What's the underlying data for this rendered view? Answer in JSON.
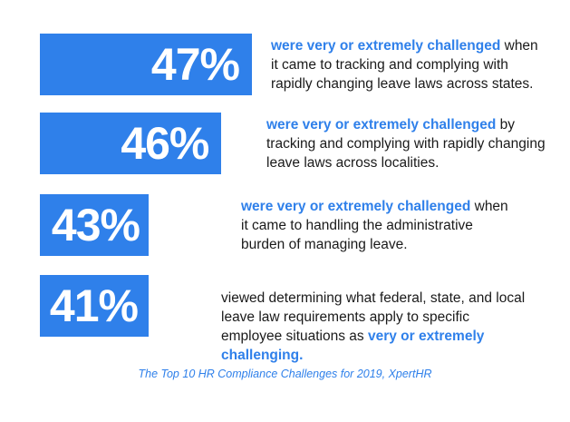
{
  "chart_data": {
    "type": "bar",
    "categories": [
      "states",
      "localities",
      "administrative burden",
      "determining requirements"
    ],
    "values": [
      47,
      46,
      43,
      41
    ],
    "value_labels": [
      "47%",
      "46%",
      "43%",
      "41%"
    ],
    "bar_color": "#2f80ea",
    "highlight_color": "#2f80ea",
    "title": "",
    "xlabel": "",
    "ylabel": ""
  },
  "items": [
    {
      "pct": "47%",
      "before": "",
      "highlight": "were very or extremely challenged",
      "after": " when it came to tracking and complying with rapidly changing leave laws across states."
    },
    {
      "pct": "46%",
      "before": "",
      "highlight": "were very or extremely challenged",
      "after": " by tracking and complying with rapidly changing leave laws across localities."
    },
    {
      "pct": "43%",
      "before": "",
      "highlight": "were very or extremely challenged",
      "after": " when it came to handling the administrative burden of managing leave."
    },
    {
      "pct": "41%",
      "before": "viewed determining what federal, state, and local leave law requirements apply to specific employee situations as ",
      "highlight": "very or extremely challenging.",
      "after": ""
    }
  ],
  "source": "The Top 10 HR Compliance Challenges for 2019, XpertHR"
}
